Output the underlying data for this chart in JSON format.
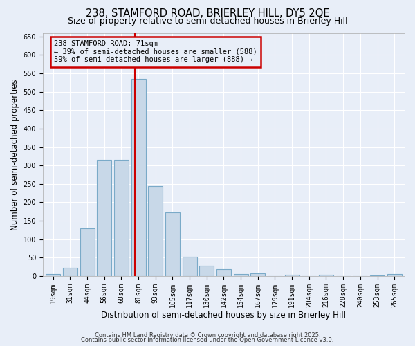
{
  "title1": "238, STAMFORD ROAD, BRIERLEY HILL, DY5 2QE",
  "title2": "Size of property relative to semi-detached houses in Brierley Hill",
  "xlabel": "Distribution of semi-detached houses by size in Brierley Hill",
  "ylabel": "Number of semi-detached properties",
  "categories": [
    "19sqm",
    "31sqm",
    "44sqm",
    "56sqm",
    "68sqm",
    "81sqm",
    "93sqm",
    "105sqm",
    "117sqm",
    "130sqm",
    "142sqm",
    "154sqm",
    "167sqm",
    "179sqm",
    "191sqm",
    "204sqm",
    "216sqm",
    "228sqm",
    "240sqm",
    "253sqm",
    "265sqm"
  ],
  "values": [
    5,
    22,
    130,
    315,
    315,
    535,
    245,
    172,
    52,
    28,
    18,
    5,
    8,
    0,
    3,
    0,
    3,
    0,
    0,
    2,
    5
  ],
  "bar_color": "#c8d8e8",
  "bar_edge_color": "#7aaac8",
  "bar_width": 0.85,
  "vline_index": 5,
  "vline_color": "#cc0000",
  "annotation_line1": "238 STAMFORD ROAD: 71sqm",
  "annotation_line2": "← 39% of semi-detached houses are smaller (588)",
  "annotation_line3": "59% of semi-detached houses are larger (888) →",
  "box_color": "#cc0000",
  "ylim": [
    0,
    660
  ],
  "yticks": [
    0,
    50,
    100,
    150,
    200,
    250,
    300,
    350,
    400,
    450,
    500,
    550,
    600,
    650
  ],
  "background_color": "#e8eef8",
  "grid_color": "#ffffff",
  "footer_line1": "Contains HM Land Registry data © Crown copyright and database right 2025.",
  "footer_line2": "Contains public sector information licensed under the Open Government Licence v3.0.",
  "title_fontsize": 10.5,
  "subtitle_fontsize": 9,
  "tick_fontsize": 7,
  "ylabel_fontsize": 8.5,
  "xlabel_fontsize": 8.5,
  "annotation_fontsize": 7.5,
  "footer_fontsize": 6
}
